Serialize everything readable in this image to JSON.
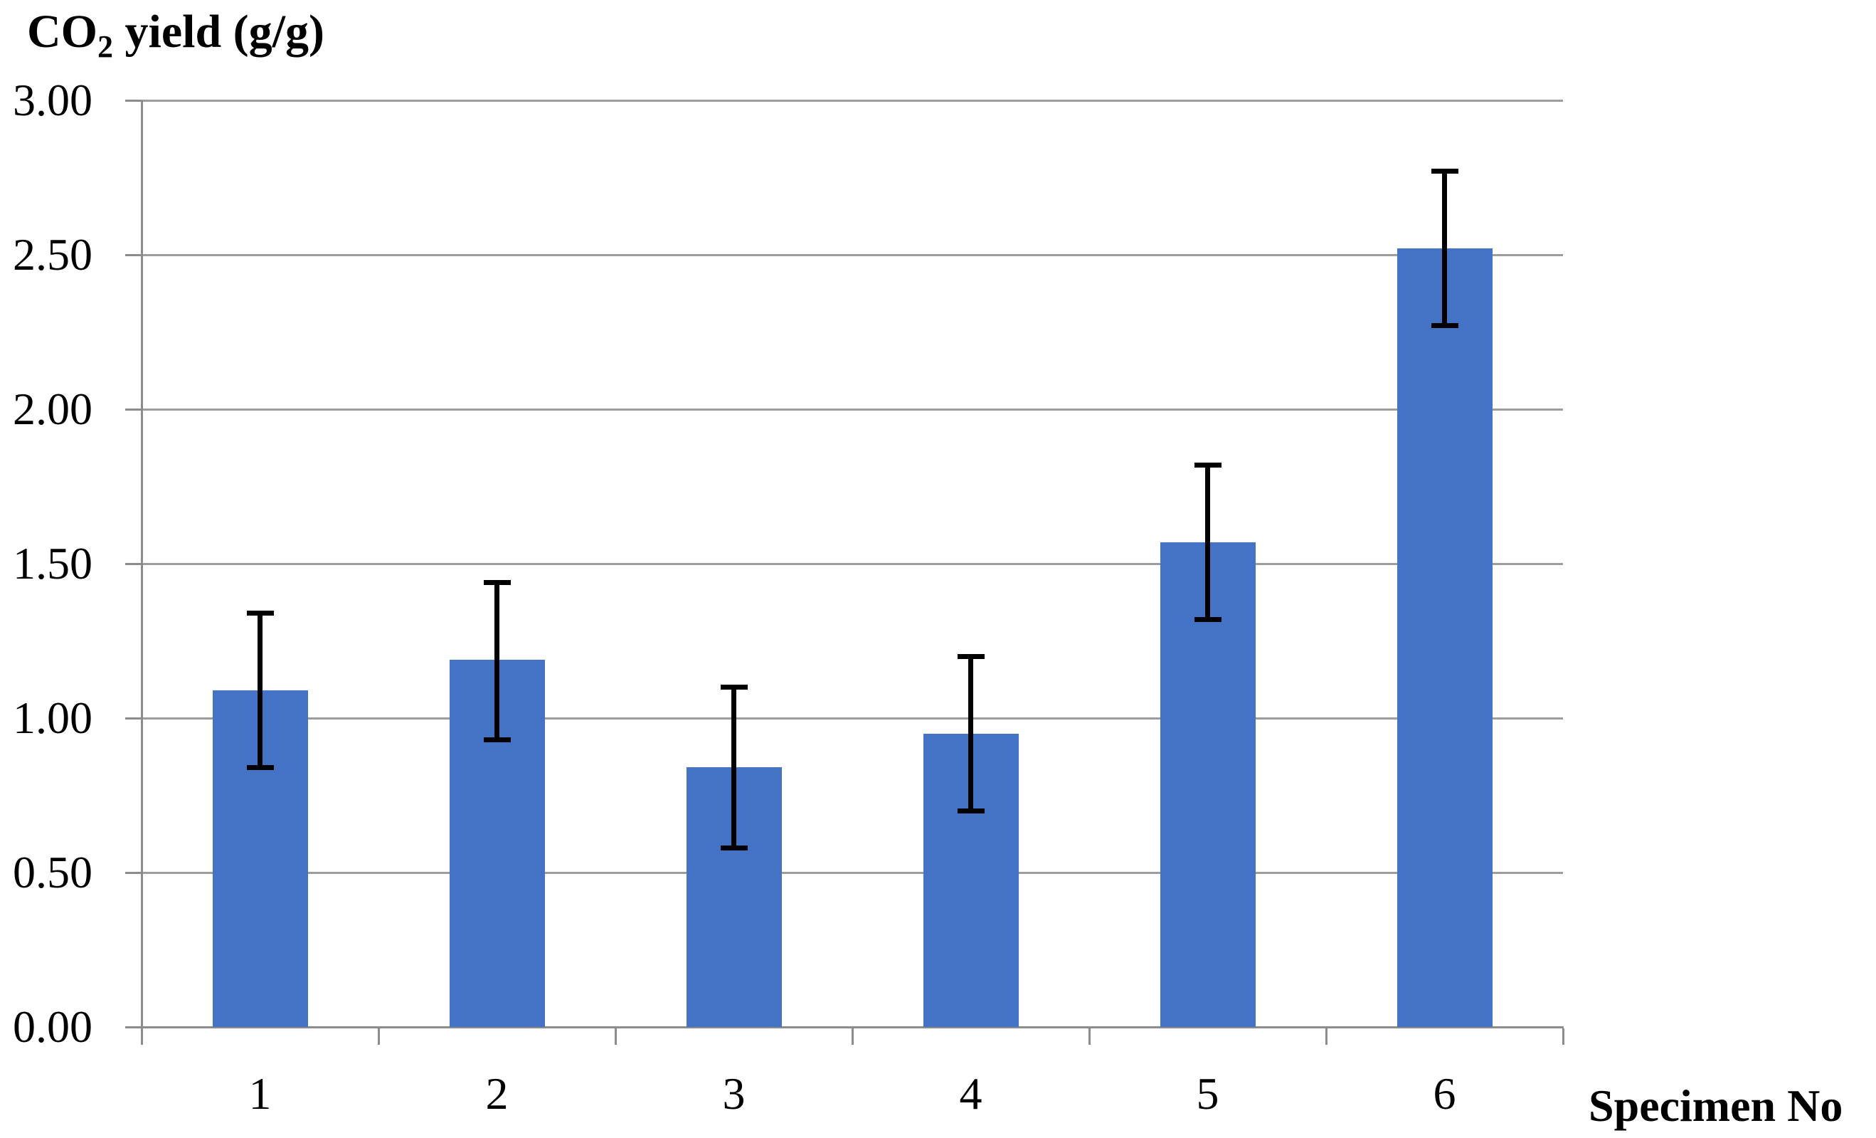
{
  "chart_data": {
    "type": "bar",
    "title": "CO2 yield (g/g)",
    "title_prefix": "CO",
    "title_sub": "2",
    "title_suffix": " yield (g/g)",
    "xlabel": "Specimen No",
    "ylabel": "CO2 yield (g/g)",
    "categories": [
      "1",
      "2",
      "3",
      "4",
      "5",
      "6"
    ],
    "values": [
      1.09,
      1.19,
      0.84,
      0.95,
      1.57,
      2.52
    ],
    "error_up": [
      0.25,
      0.25,
      0.26,
      0.25,
      0.25,
      0.25
    ],
    "error_down": [
      0.25,
      0.26,
      0.26,
      0.25,
      0.25,
      0.25
    ],
    "ylim": [
      0,
      3
    ],
    "y_tick_step": 0.5,
    "y_tick_labels": [
      "0.00",
      "0.50",
      "1.00",
      "1.50",
      "2.00",
      "2.50",
      "3.00"
    ],
    "grid": true,
    "legend": "none",
    "colors": {
      "bar": "#4472C4",
      "gridline": "#9D9D9D",
      "axis": "#8C8C8C",
      "error": "#000000",
      "text": "#000000",
      "background": "#FFFFFF"
    }
  }
}
